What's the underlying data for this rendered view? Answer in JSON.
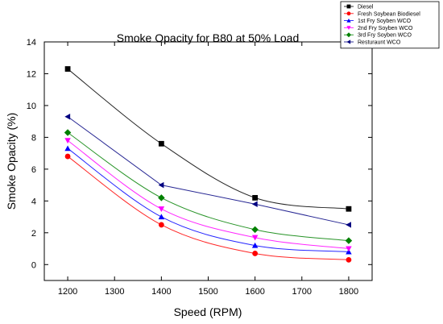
{
  "chart_data": {
    "type": "line",
    "title": "Smoke Opacity for B80 at 50% Load",
    "xlabel": "Speed (RPM)",
    "ylabel": "Smoke Opacity (%)",
    "xlim": [
      1150,
      1850
    ],
    "ylim": [
      -1,
      14
    ],
    "xticks": [
      1200,
      1300,
      1400,
      1500,
      1600,
      1700,
      1800
    ],
    "yticks": [
      0,
      2,
      4,
      6,
      8,
      10,
      12,
      14
    ],
    "x": [
      1200,
      1400,
      1600,
      1800
    ],
    "legend_position": "top-right, outside plot",
    "grid": false,
    "series": [
      {
        "name": "Diesel",
        "values": [
          12.3,
          7.6,
          4.2,
          3.5
        ],
        "color": "#000000",
        "marker": "square",
        "line": "spline"
      },
      {
        "name": "Fresh Soybean Biodiesel",
        "values": [
          6.8,
          2.5,
          0.7,
          0.3
        ],
        "color": "#ff0000",
        "marker": "circle",
        "line": "spline"
      },
      {
        "name": "1st Fry Soyben WCO",
        "values": [
          7.3,
          3.0,
          1.2,
          0.8
        ],
        "color": "#0000ff",
        "marker": "triangle-up",
        "line": "spline"
      },
      {
        "name": "2nd Fry Soyben WCO",
        "values": [
          7.8,
          3.5,
          1.7,
          1.0
        ],
        "color": "#ff00ff",
        "marker": "triangle-down",
        "line": "spline"
      },
      {
        "name": "3rd Fry Soyben WCO",
        "values": [
          8.3,
          4.2,
          2.2,
          1.5
        ],
        "color": "#008000",
        "marker": "diamond",
        "line": "spline"
      },
      {
        "name": "Resturaunt WCO",
        "values": [
          9.3,
          5.0,
          3.8,
          2.5
        ],
        "color": "#000080",
        "marker": "triangle-left",
        "line": "straight"
      }
    ]
  }
}
